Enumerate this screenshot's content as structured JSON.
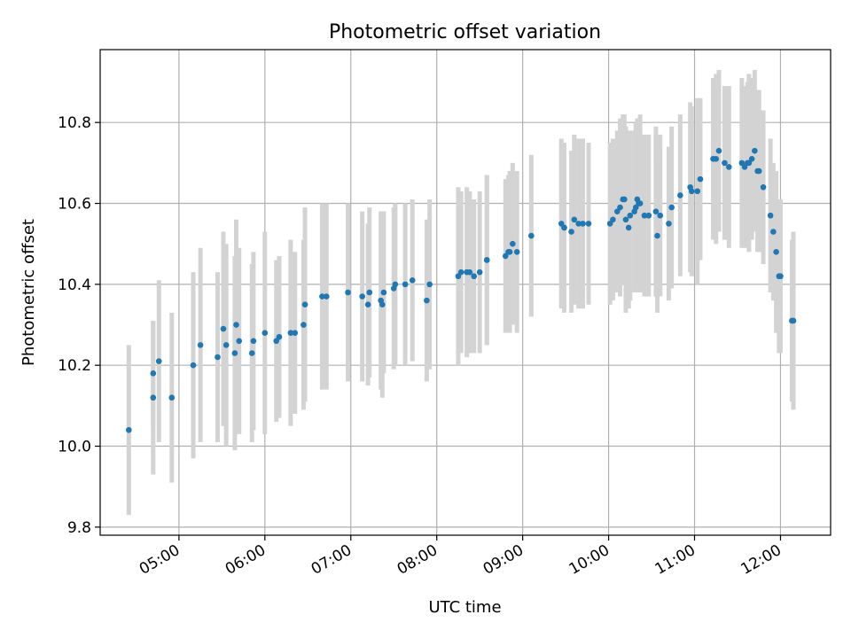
{
  "chart_data": {
    "type": "scatter",
    "title": "Photometric offset variation",
    "xlabel": "UTC time",
    "ylabel": "Photometric offset",
    "x_tick_labels": [
      "05:00",
      "06:00",
      "07:00",
      "08:00",
      "09:00",
      "10:00",
      "11:00",
      "12:00"
    ],
    "y_tick_labels": [
      "9.8",
      "10.0",
      "10.2",
      "10.4",
      "10.6",
      "10.8"
    ],
    "xlim": [
      "04:05",
      "12:35"
    ],
    "ylim": [
      9.78,
      10.98
    ],
    "grid": true,
    "colors": {
      "points": "#1f77b4",
      "error_bars": "#d3d3d3",
      "grid": "#b0b0b0"
    },
    "series": [
      {
        "x": [
          "04:25",
          "04:42",
          "04:42",
          "04:46",
          "04:55",
          "05:10",
          "05:15",
          "05:27",
          "05:31",
          "05:33",
          "05:39",
          "05:40",
          "05:42",
          "05:51",
          "05:52",
          "06:00",
          "06:08",
          "06:10",
          "06:18",
          "06:21",
          "06:27",
          "06:28",
          "06:40",
          "06:43",
          "06:58",
          "07:08",
          "07:12",
          "07:13",
          "07:21",
          "07:22",
          "07:23",
          "07:30",
          "07:31",
          "07:38",
          "07:43",
          "07:53",
          "07:55",
          "08:15",
          "08:17",
          "08:21",
          "08:23",
          "08:26",
          "08:30",
          "08:35",
          "08:35",
          "08:48",
          "08:50",
          "08:51",
          "08:53",
          "08:56",
          "09:06",
          "09:27",
          "09:29",
          "09:29",
          "09:34",
          "09:36",
          "09:39",
          "09:42",
          "09:46",
          "10:01",
          "10:03",
          "10:06",
          "10:08",
          "10:10",
          "10:11",
          "10:12",
          "10:14",
          "10:15",
          "10:18",
          "10:19",
          "10:20",
          "10:21",
          "10:22",
          "10:25",
          "10:28",
          "10:33",
          "10:34",
          "10:36",
          "10:42",
          "10:44",
          "10:50",
          "10:57",
          "10:58",
          "11:02",
          "11:04",
          "11:13",
          "11:15",
          "11:17",
          "11:21",
          "11:24",
          "11:33",
          "11:35",
          "11:37",
          "11:38",
          "11:40",
          "11:42",
          "11:44",
          "11:45",
          "11:48",
          "11:53",
          "11:55",
          "11:57",
          "11:59",
          "12:00",
          "12:08",
          "12:09"
        ],
        "y": [
          10.04,
          10.18,
          10.12,
          10.21,
          10.12,
          10.2,
          10.25,
          10.22,
          10.29,
          10.25,
          10.23,
          10.3,
          10.26,
          10.23,
          10.26,
          10.28,
          10.26,
          10.27,
          10.28,
          10.28,
          10.3,
          10.35,
          10.37,
          10.37,
          10.38,
          10.37,
          10.35,
          10.38,
          10.36,
          10.35,
          10.38,
          10.39,
          10.4,
          10.4,
          10.41,
          10.36,
          10.4,
          10.42,
          10.43,
          10.43,
          10.43,
          10.42,
          10.43,
          10.46,
          10.46,
          10.47,
          10.48,
          10.48,
          10.5,
          10.48,
          10.52,
          10.55,
          10.54,
          10.54,
          10.53,
          10.56,
          10.55,
          10.55,
          10.55,
          10.55,
          10.56,
          10.58,
          10.59,
          10.61,
          10.61,
          10.56,
          10.54,
          10.57,
          10.58,
          10.59,
          10.61,
          10.6,
          10.6,
          10.57,
          10.57,
          10.58,
          10.52,
          10.57,
          10.55,
          10.59,
          10.62,
          10.64,
          10.63,
          10.63,
          10.66,
          10.71,
          10.71,
          10.73,
          10.7,
          10.69,
          10.7,
          10.69,
          10.7,
          10.7,
          10.71,
          10.73,
          10.68,
          10.68,
          10.64,
          10.57,
          10.53,
          10.48,
          10.42,
          10.42,
          10.31,
          10.31
        ],
        "yerr": [
          0.21,
          0.13,
          0.19,
          0.2,
          0.21,
          0.23,
          0.24,
          0.21,
          0.24,
          0.25,
          0.24,
          0.26,
          0.23,
          0.22,
          0.22,
          0.25,
          0.2,
          0.2,
          0.23,
          0.2,
          0.21,
          0.24,
          0.23,
          0.23,
          0.22,
          0.21,
          0.2,
          0.21,
          0.22,
          0.23,
          0.2,
          0.2,
          0.2,
          0.2,
          0.2,
          0.2,
          0.21,
          0.22,
          0.2,
          0.21,
          0.2,
          0.19,
          0.2,
          0.21,
          0.21,
          0.19,
          0.19,
          0.2,
          0.2,
          0.2,
          0.2,
          0.21,
          0.2,
          0.21,
          0.2,
          0.21,
          0.21,
          0.21,
          0.2,
          0.2,
          0.2,
          0.2,
          0.22,
          0.21,
          0.21,
          0.23,
          0.2,
          0.21,
          0.2,
          0.21,
          0.2,
          0.2,
          0.22,
          0.2,
          0.2,
          0.21,
          0.19,
          0.2,
          0.19,
          0.2,
          0.2,
          0.21,
          0.21,
          0.23,
          0.2,
          0.2,
          0.21,
          0.2,
          0.19,
          0.2,
          0.21,
          0.2,
          0.2,
          0.22,
          0.2,
          0.2,
          0.2,
          0.2,
          0.19,
          0.19,
          0.17,
          0.2,
          0.19,
          0.19,
          0.2,
          0.22
        ]
      }
    ]
  }
}
